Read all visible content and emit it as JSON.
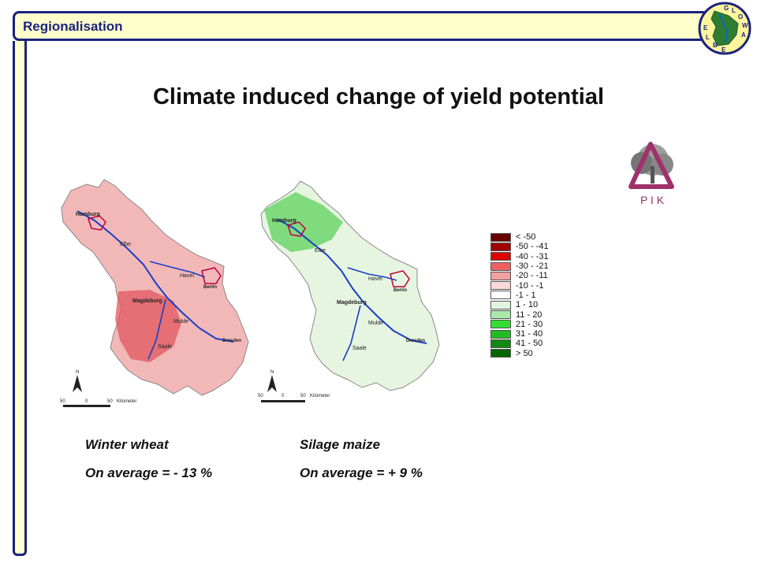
{
  "header": {
    "section_title": "Regionalisation"
  },
  "logo": {
    "letters": [
      "G",
      "L",
      "O",
      "W",
      "A",
      "E",
      "L",
      "B",
      "E"
    ],
    "name": "glowa-elbe-logo"
  },
  "title": "Climate induced change of yield potential",
  "pik_logo": {
    "text": "P I K"
  },
  "maps": [
    {
      "name": "winter-wheat",
      "labels": [
        "Hamburg",
        "Elbe",
        "Havel",
        "Berlin",
        "Magdeburg",
        "Mulde",
        "Saale",
        "Dresden"
      ],
      "scale": {
        "n": "N",
        "ticks": [
          "50",
          "0",
          "50"
        ],
        "unit": "Kilometer"
      },
      "fill": "#f2b8b8",
      "hot": "#e0575e"
    },
    {
      "name": "silage-maize",
      "labels": [
        "Hamburg",
        "Elbe",
        "Havel",
        "Berlin",
        "Magdeburg",
        "Mulde",
        "Saale",
        "Dresden"
      ],
      "scale": {
        "n": "N",
        "ticks": [
          "50",
          "0",
          "50"
        ],
        "unit": "Kilometer"
      },
      "fill": "#e6f5e0",
      "hot": "#3cc83c"
    }
  ],
  "legend": [
    {
      "label": "< -50",
      "color": "#6b0000"
    },
    {
      "label": "-50 - -41",
      "color": "#a00000"
    },
    {
      "label": "-40 - -31",
      "color": "#e00000"
    },
    {
      "label": "-30 - -21",
      "color": "#f06060"
    },
    {
      "label": "-20 - -11",
      "color": "#f5a0a0"
    },
    {
      "label": "-10 - -1",
      "color": "#fbd8d8"
    },
    {
      "label": "-1 - 1",
      "color": "#ffffff"
    },
    {
      "label": "1 - 10",
      "color": "#e0f5e0"
    },
    {
      "label": "11 - 20",
      "color": "#a8eaa8"
    },
    {
      "label": "21 - 30",
      "color": "#33dd33"
    },
    {
      "label": "31 - 40",
      "color": "#22bb22"
    },
    {
      "label": "41 - 50",
      "color": "#118811"
    },
    {
      "label": "> 50",
      "color": "#006600"
    }
  ],
  "captions": {
    "left_crop": "Winter wheat",
    "left_avg": "On average = - 13 %",
    "right_crop": "Silage maize",
    "right_avg": "On average = + 9 %"
  }
}
